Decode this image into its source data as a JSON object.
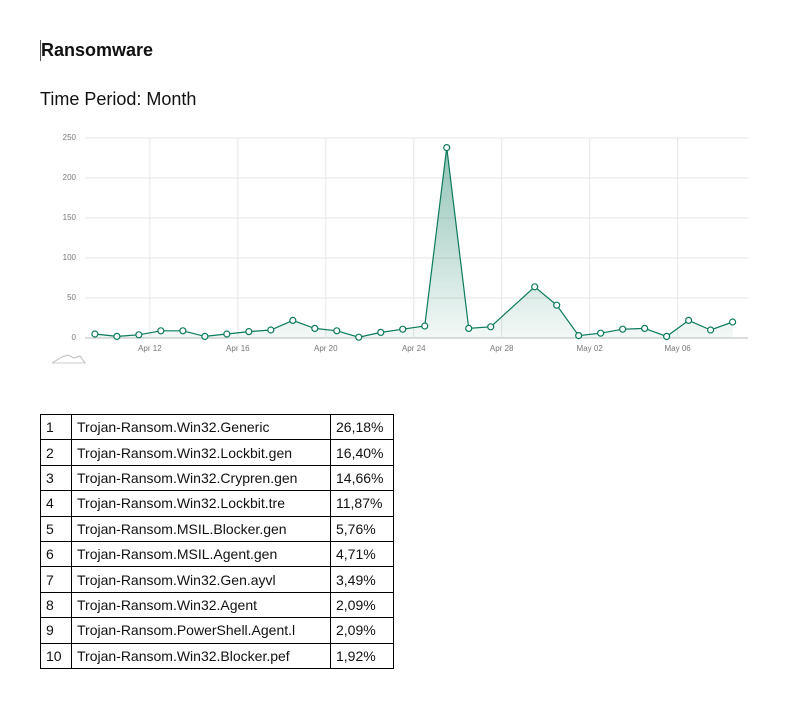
{
  "header": {
    "title": "Ransomware",
    "subtitle": "Time Period: Month"
  },
  "chart_data": {
    "type": "line",
    "color": "#0b7a5c",
    "grid": true,
    "x": [
      0,
      1,
      2,
      3,
      4,
      5,
      6,
      7,
      8,
      9,
      10,
      11,
      12,
      13,
      14,
      15,
      16,
      17,
      18,
      20,
      21,
      22,
      23,
      24,
      25,
      26,
      27,
      28,
      29
    ],
    "values": [
      5,
      2,
      4,
      9,
      9,
      2,
      5,
      8,
      10,
      22,
      12,
      9,
      1,
      7,
      11,
      15,
      238,
      12,
      14,
      64,
      41,
      3,
      6,
      11,
      12,
      2,
      22,
      10,
      20
    ],
    "xlim": [
      -0.45,
      29.7
    ],
    "xticks": [
      {
        "value": 2.5,
        "label": "Apr 12"
      },
      {
        "value": 6.5,
        "label": "Apr 16"
      },
      {
        "value": 10.5,
        "label": "Apr 20"
      },
      {
        "value": 14.5,
        "label": "Apr 24"
      },
      {
        "value": 18.5,
        "label": "Apr 28"
      },
      {
        "value": 22.5,
        "label": "May 02"
      },
      {
        "value": 26.5,
        "label": "May 06"
      }
    ],
    "ylim": [
      0,
      250
    ],
    "yticks": [
      0,
      50,
      100,
      150,
      200,
      250
    ]
  },
  "table": {
    "rows": [
      [
        1,
        "Trojan-Ransom.Win32.Generic",
        "26,18%"
      ],
      [
        2,
        "Trojan-Ransom.Win32.Lockbit.gen",
        "16,40%"
      ],
      [
        3,
        "Trojan-Ransom.Win32.Crypren.gen",
        "14,66%"
      ],
      [
        4,
        "Trojan-Ransom.Win32.Lockbit.tre",
        "11,87%"
      ],
      [
        5,
        "Trojan-Ransom.MSIL.Blocker.gen",
        "5,76%"
      ],
      [
        6,
        "Trojan-Ransom.MSIL.Agent.gen",
        "4,71%"
      ],
      [
        7,
        "Trojan-Ransom.Win32.Gen.ayvl",
        "3,49%"
      ],
      [
        8,
        "Trojan-Ransom.Win32.Agent",
        "2,09%"
      ],
      [
        9,
        "Trojan-Ransom.PowerShell.Agent.l",
        "2,09%"
      ],
      [
        10,
        "Trojan-Ransom.Win32.Blocker.pef",
        "1,92%"
      ]
    ]
  }
}
